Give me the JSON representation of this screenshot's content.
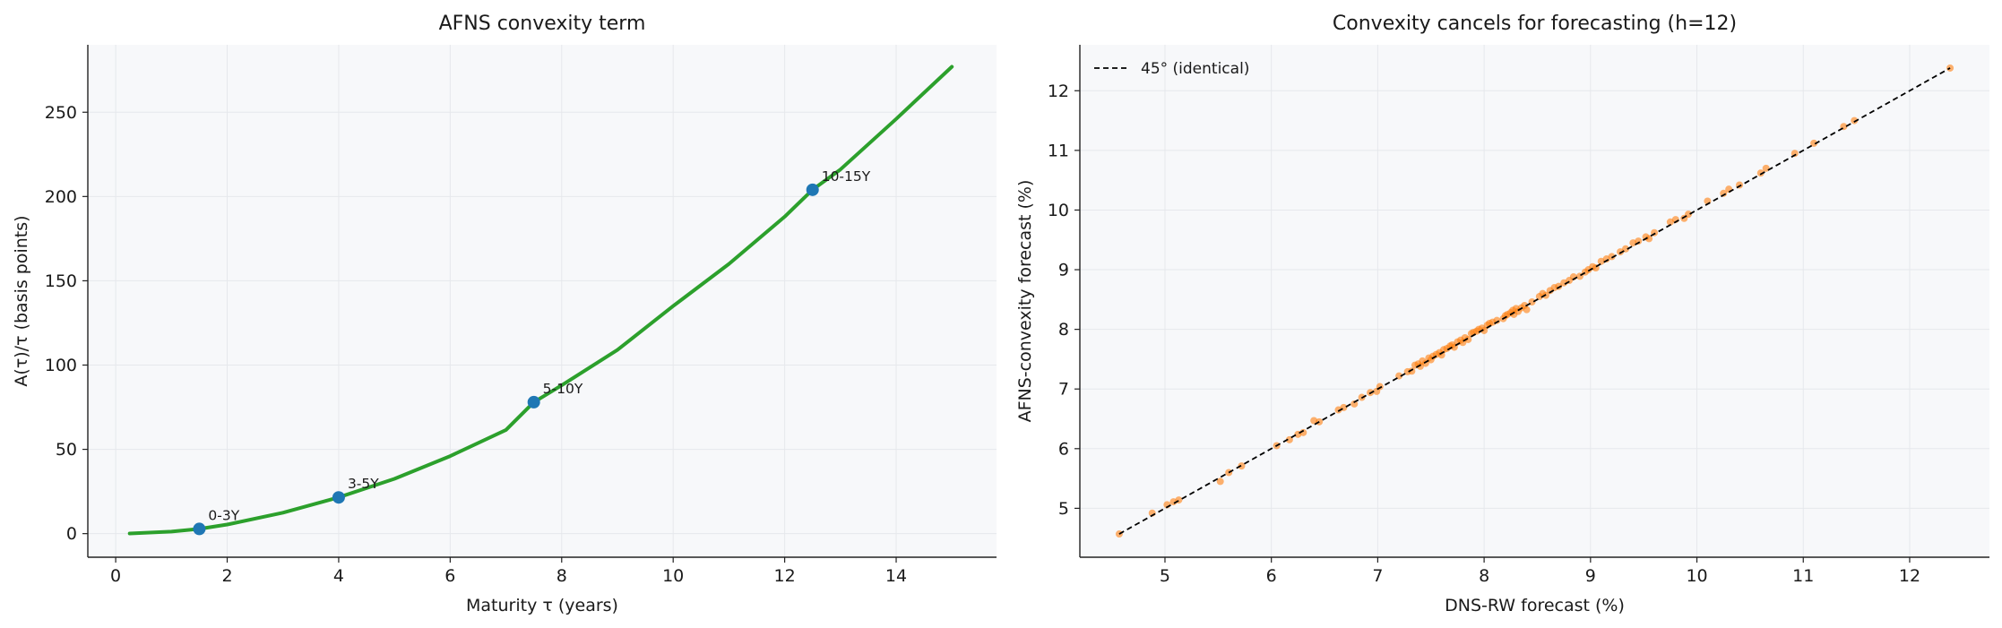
{
  "chart_data": [
    {
      "type": "line",
      "title": "AFNS convexity term",
      "xlabel": "Maturity τ (years)",
      "ylabel": "A(τ)/τ  (basis points)",
      "xlim": [
        -0.5,
        15.8
      ],
      "ylim": [
        -14,
        290
      ],
      "xticks": [
        0,
        2,
        4,
        6,
        8,
        10,
        12,
        14
      ],
      "yticks": [
        0,
        50,
        100,
        150,
        200,
        250
      ],
      "grid": true,
      "line_color": "#2ca02c",
      "marker_color": "#1f77b4",
      "series": [
        {
          "x": [
            0.25,
            1,
            1.5,
            2,
            3,
            4,
            5,
            6,
            7,
            7.5,
            8,
            9,
            10,
            11,
            12,
            12.5,
            13,
            14,
            15
          ],
          "y": [
            0.1,
            1.2,
            2.8,
            5.4,
            12.4,
            21.5,
            32.5,
            46,
            61.5,
            78,
            88,
            109,
            135,
            160,
            188,
            204,
            216,
            246,
            277
          ]
        }
      ],
      "markers": [
        {
          "x": 1.5,
          "y": 2.8,
          "label": "0-3Y"
        },
        {
          "x": 4,
          "y": 21.5,
          "label": "3-5Y"
        },
        {
          "x": 7.5,
          "y": 78,
          "label": "5-10Y"
        },
        {
          "x": 12.5,
          "y": 204,
          "label": "10-15Y"
        }
      ]
    },
    {
      "type": "scatter",
      "title": "Convexity cancels for forecasting (h=12)",
      "xlabel": "DNS-RW forecast (%)",
      "ylabel": "AFNS-convexity forecast (%)",
      "xlim": [
        4.2,
        12.75
      ],
      "ylim": [
        4.18,
        12.77
      ],
      "xticks": [
        5,
        6,
        7,
        8,
        9,
        10,
        11,
        12
      ],
      "yticks": [
        5,
        6,
        7,
        8,
        9,
        10,
        11,
        12
      ],
      "grid": true,
      "point_color": "#ff7f0e",
      "legend": {
        "label": "45° (identical)",
        "position": "top-left"
      },
      "reference_line": {
        "from": [
          4.57,
          4.57
        ],
        "to": [
          12.38,
          12.38
        ],
        "style": "dashed"
      },
      "points": [
        [
          4.57,
          4.57
        ],
        [
          4.88,
          4.92
        ],
        [
          5.02,
          5.06
        ],
        [
          5.08,
          5.11
        ],
        [
          5.13,
          5.14
        ],
        [
          5.52,
          5.45
        ],
        [
          5.6,
          5.6
        ],
        [
          5.72,
          5.71
        ],
        [
          6.05,
          6.05
        ],
        [
          6.17,
          6.15
        ],
        [
          6.25,
          6.24
        ],
        [
          6.3,
          6.27
        ],
        [
          6.4,
          6.47
        ],
        [
          6.45,
          6.45
        ],
        [
          6.63,
          6.65
        ],
        [
          6.68,
          6.69
        ],
        [
          6.78,
          6.75
        ],
        [
          6.85,
          6.86
        ],
        [
          6.93,
          6.94
        ],
        [
          6.99,
          6.96
        ],
        [
          7.02,
          7.04
        ],
        [
          7.2,
          7.22
        ],
        [
          7.28,
          7.29
        ],
        [
          7.32,
          7.3
        ],
        [
          7.35,
          7.4
        ],
        [
          7.38,
          7.42
        ],
        [
          7.4,
          7.38
        ],
        [
          7.42,
          7.47
        ],
        [
          7.45,
          7.43
        ],
        [
          7.48,
          7.52
        ],
        [
          7.5,
          7.49
        ],
        [
          7.52,
          7.55
        ],
        [
          7.55,
          7.58
        ],
        [
          7.58,
          7.61
        ],
        [
          7.6,
          7.57
        ],
        [
          7.62,
          7.66
        ],
        [
          7.65,
          7.68
        ],
        [
          7.68,
          7.72
        ],
        [
          7.7,
          7.74
        ],
        [
          7.72,
          7.7
        ],
        [
          7.75,
          7.79
        ],
        [
          7.78,
          7.82
        ],
        [
          7.8,
          7.78
        ],
        [
          7.82,
          7.86
        ],
        [
          7.85,
          7.83
        ],
        [
          7.88,
          7.93
        ],
        [
          7.9,
          7.95
        ],
        [
          7.93,
          7.97
        ],
        [
          7.95,
          8.0
        ],
        [
          7.98,
          8.02
        ],
        [
          8.0,
          7.98
        ],
        [
          8.03,
          8.07
        ],
        [
          8.05,
          8.1
        ],
        [
          8.08,
          8.12
        ],
        [
          8.12,
          8.15
        ],
        [
          8.18,
          8.18
        ],
        [
          8.2,
          8.23
        ],
        [
          8.22,
          8.25
        ],
        [
          8.25,
          8.28
        ],
        [
          8.27,
          8.32
        ],
        [
          8.28,
          8.25
        ],
        [
          8.3,
          8.35
        ],
        [
          8.32,
          8.3
        ],
        [
          8.35,
          8.36
        ],
        [
          8.38,
          8.4
        ],
        [
          8.4,
          8.33
        ],
        [
          8.45,
          8.46
        ],
        [
          8.52,
          8.55
        ],
        [
          8.55,
          8.6
        ],
        [
          8.58,
          8.57
        ],
        [
          8.62,
          8.65
        ],
        [
          8.66,
          8.7
        ],
        [
          8.7,
          8.72
        ],
        [
          8.75,
          8.78
        ],
        [
          8.8,
          8.82
        ],
        [
          8.84,
          8.88
        ],
        [
          8.9,
          8.89
        ],
        [
          8.95,
          8.96
        ],
        [
          8.98,
          9.0
        ],
        [
          9.02,
          9.05
        ],
        [
          9.05,
          9.03
        ],
        [
          9.1,
          9.14
        ],
        [
          9.15,
          9.18
        ],
        [
          9.2,
          9.22
        ],
        [
          9.28,
          9.3
        ],
        [
          9.33,
          9.35
        ],
        [
          9.4,
          9.45
        ],
        [
          9.45,
          9.48
        ],
        [
          9.52,
          9.55
        ],
        [
          9.55,
          9.52
        ],
        [
          9.6,
          9.62
        ],
        [
          9.75,
          9.8
        ],
        [
          9.8,
          9.84
        ],
        [
          9.88,
          9.86
        ],
        [
          9.92,
          9.93
        ],
        [
          10.1,
          10.15
        ],
        [
          10.25,
          10.28
        ],
        [
          10.3,
          10.35
        ],
        [
          10.4,
          10.42
        ],
        [
          10.6,
          10.62
        ],
        [
          10.65,
          10.7
        ],
        [
          10.92,
          10.95
        ],
        [
          11.1,
          11.12
        ],
        [
          11.38,
          11.4
        ],
        [
          11.48,
          11.5
        ],
        [
          12.38,
          12.38
        ]
      ]
    }
  ]
}
